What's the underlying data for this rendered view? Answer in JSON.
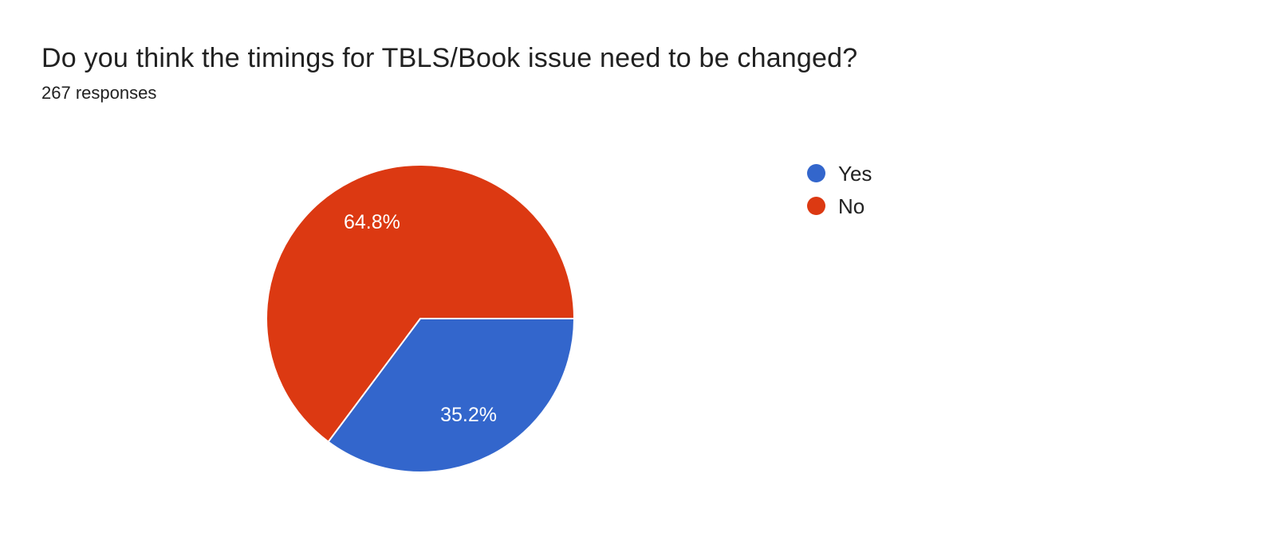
{
  "header": {
    "title": "Do you think the timings for TBLS/Book issue need to be changed?",
    "subtitle": "267 responses"
  },
  "chart_data": {
    "type": "pie",
    "title": "Do you think the timings for TBLS/Book issue need to be changed?",
    "subtitle": "267 responses",
    "total_responses": 267,
    "legend_position": "right",
    "start_angle_deg": 0,
    "direction": "clockwise",
    "slice_label_color": "#ffffff",
    "slice_separator_color": "#ffffff",
    "series": [
      {
        "label": "Yes",
        "value_pct": 35.2,
        "display_label": "35.2%",
        "color": "#3366cc"
      },
      {
        "label": "No",
        "value_pct": 64.8,
        "display_label": "64.8%",
        "color": "#dc3912"
      }
    ]
  }
}
